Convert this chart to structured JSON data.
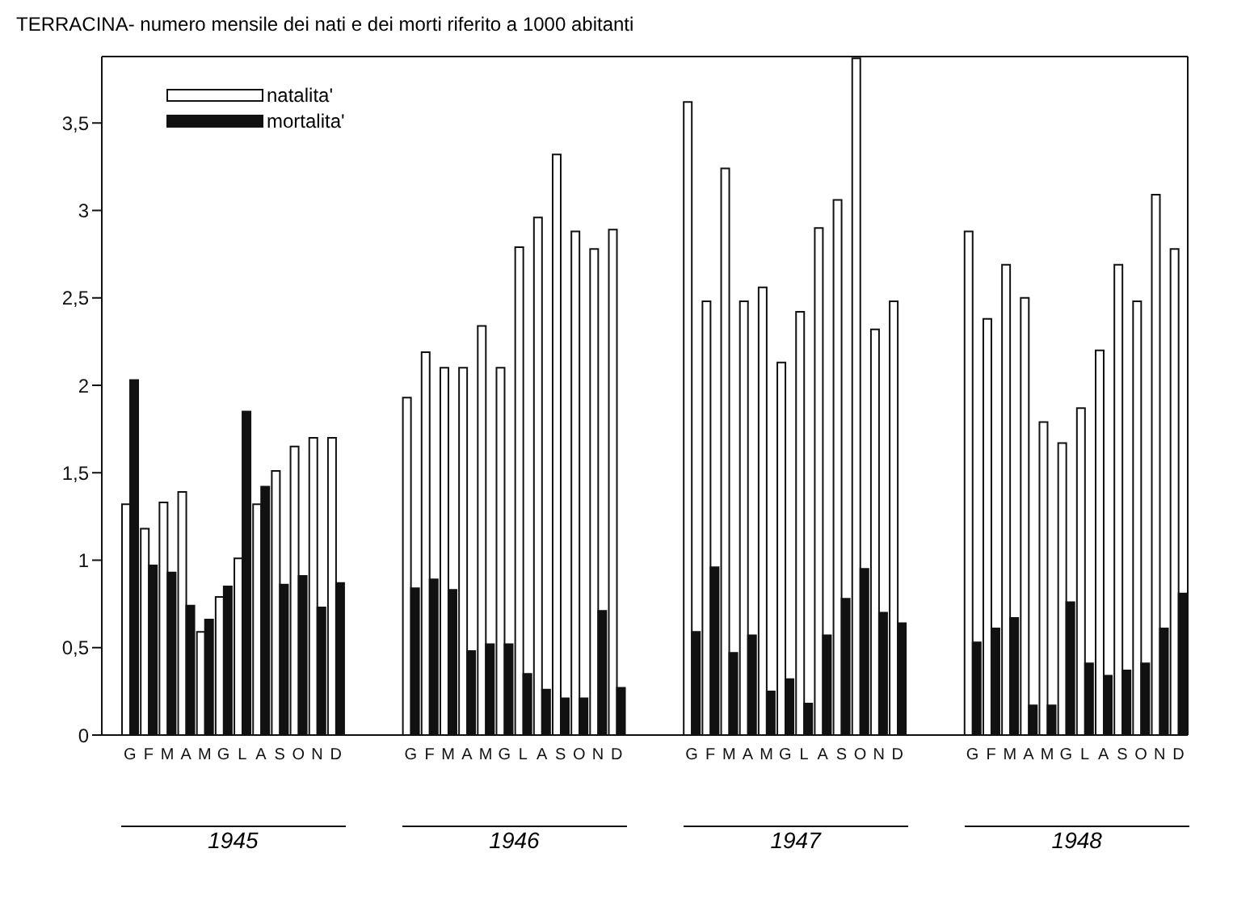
{
  "chart_data": {
    "type": "bar",
    "title": "TERRACINA- numero mensile dei nati e dei morti riferito a 1000 abitanti",
    "categories": [
      null,
      "G",
      "F",
      "M",
      "A",
      "M",
      "G",
      "L",
      "A",
      "S",
      "O",
      "N",
      "D",
      null,
      null,
      null,
      "G",
      "F",
      "M",
      "A",
      "M",
      "G",
      "L",
      "A",
      "S",
      "O",
      "N",
      "D",
      null,
      null,
      null,
      "G",
      "F",
      "M",
      "A",
      "M",
      "G",
      "L",
      "A",
      "S",
      "O",
      "N",
      "D",
      null,
      null,
      null,
      "G",
      "F",
      "M",
      "A",
      "M",
      "G",
      "L",
      "A",
      "S",
      "O",
      "N",
      "D"
    ],
    "series": [
      {
        "name": "natalita'",
        "color": "#ffffff",
        "values": [
          null,
          1.32,
          1.18,
          1.33,
          1.39,
          0.59,
          0.79,
          1.01,
          1.32,
          1.51,
          1.65,
          1.7,
          1.7,
          null,
          null,
          null,
          1.93,
          2.19,
          2.1,
          2.1,
          2.34,
          2.1,
          2.79,
          2.96,
          3.32,
          2.88,
          2.78,
          2.89,
          null,
          null,
          null,
          3.62,
          2.48,
          3.24,
          2.48,
          2.56,
          2.13,
          2.42,
          2.9,
          3.06,
          3.87,
          2.32,
          2.48,
          null,
          null,
          null,
          2.88,
          2.38,
          2.69,
          2.5,
          1.79,
          1.67,
          1.87,
          2.2,
          2.69,
          2.48,
          3.09,
          2.78
        ]
      },
      {
        "name": "mortalita'",
        "color": "#111111",
        "values": [
          null,
          2.03,
          0.97,
          0.93,
          0.74,
          0.66,
          0.85,
          1.85,
          1.42,
          0.86,
          0.91,
          0.73,
          0.87,
          null,
          null,
          null,
          0.84,
          0.89,
          0.83,
          0.48,
          0.52,
          0.52,
          0.35,
          0.26,
          0.21,
          0.21,
          0.71,
          0.27,
          null,
          null,
          null,
          0.59,
          0.96,
          0.47,
          0.57,
          0.25,
          0.32,
          0.18,
          0.57,
          0.78,
          0.95,
          0.7,
          0.64,
          null,
          null,
          null,
          0.53,
          0.61,
          0.67,
          0.17,
          0.17,
          0.76,
          0.41,
          0.34,
          0.37,
          0.41,
          0.61,
          0.81
        ]
      }
    ],
    "annotations": [
      "1945",
      "1946",
      "1947",
      "1948"
    ],
    "ylim": [
      0,
      3.88
    ],
    "yticks": [
      0,
      {
        "value": 0.5,
        "label": "0,5"
      },
      1,
      {
        "value": 1.5,
        "label": "1,5"
      },
      2,
      {
        "value": 2.5,
        "label": "2,5"
      },
      3,
      {
        "value": 3.5,
        "label": "3,5"
      }
    ],
    "grid": false,
    "legend": "top left"
  }
}
